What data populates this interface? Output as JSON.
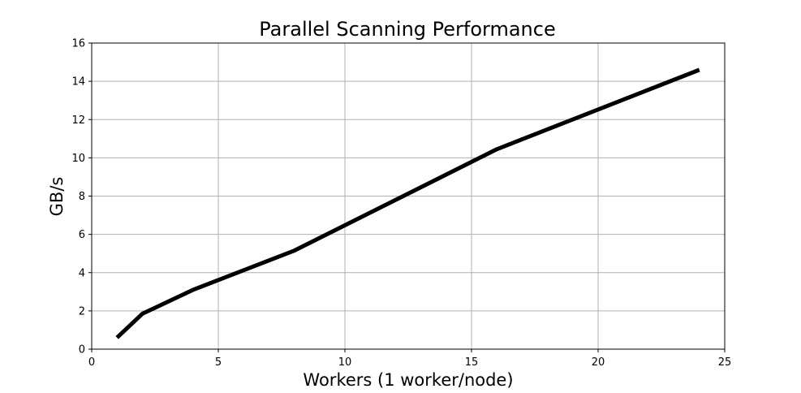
{
  "chart_data": {
    "type": "line",
    "title": "Parallel Scanning Performance",
    "xlabel": "Workers (1 worker/node)",
    "ylabel": "GB/s",
    "xlim": [
      0,
      25
    ],
    "ylim": [
      0,
      16
    ],
    "xticks": [
      0,
      5,
      10,
      15,
      20,
      25
    ],
    "yticks": [
      0,
      2,
      4,
      6,
      8,
      10,
      12,
      14,
      16
    ],
    "grid": true,
    "series": [
      {
        "color": "#000000",
        "x": [
          1,
          2,
          4,
          8,
          16,
          24
        ],
        "y": [
          0.6,
          1.85,
          3.1,
          5.15,
          10.45,
          14.6
        ]
      }
    ]
  }
}
